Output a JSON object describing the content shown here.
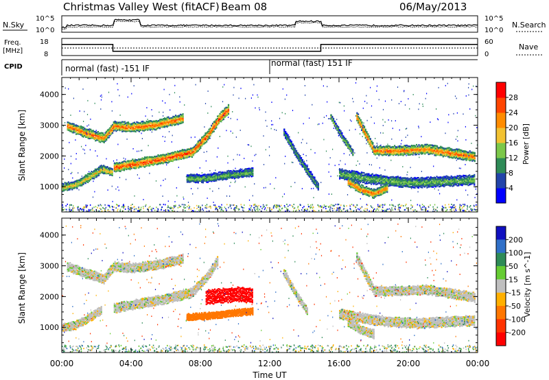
{
  "header": {
    "station": "Christmas Valley West (fitACF)",
    "beam": "Beam 08",
    "date": "06/May/2013"
  },
  "summary": {
    "nsky_label": "N.Sky",
    "nsearch_label": "N.Search",
    "noise_ticks_left": [
      "10^5",
      "10^0"
    ],
    "noise_ticks_right": [
      "10^5",
      "10^0"
    ],
    "freq_label_line1": "Freq.",
    "freq_label_line2": "[MHz]",
    "freq_ticks": [
      "18",
      "8"
    ],
    "nave_label": "Nave",
    "nave_ticks": [
      "60",
      "0"
    ],
    "cpid_label": "CPID",
    "cpid_segments": [
      {
        "label": "normal (fast) -151 IF",
        "start_hour": 0,
        "end_hour": 12
      },
      {
        "label": "normal (fast) 151 IF",
        "start_hour": 12,
        "end_hour": 24
      }
    ],
    "freq_step": {
      "high_mhz": 14.5,
      "low_mhz": 10.5,
      "low_start_hour": 2.95,
      "low_end_hour": 14.95
    }
  },
  "chart_data": [
    {
      "type": "heatmap",
      "title": "",
      "ylabel": "Slant Range [km]",
      "yticks": [
        "1000",
        "2000",
        "3000",
        "4000"
      ],
      "ylim": [
        180,
        4550
      ],
      "xlim": [
        0,
        24
      ],
      "colorbar_label": "Power [dB]",
      "colorbar_ticks": [
        "4",
        "8",
        "12",
        "16",
        "20",
        "24",
        "28"
      ],
      "colorbar_range": [
        0,
        32
      ],
      "colors": [
        "#0000ff",
        "#2244aa",
        "#2e8b57",
        "#7cc84a",
        "#f2c232",
        "#ff8c00",
        "#ff4500",
        "#ff0000"
      ],
      "bands": [
        {
          "name": "F-region upper",
          "points": [
            [
              0.3,
              3000
            ],
            [
              1.5,
              2750
            ],
            [
              2.4,
              2600
            ],
            [
              3.0,
              3000
            ],
            [
              4.0,
              2950
            ],
            [
              5.5,
              3050
            ],
            [
              7.0,
              3250
            ]
          ],
          "width_km": 260,
          "peak": 26
        },
        {
          "name": "F-region lower",
          "points": [
            [
              3.0,
              1650
            ],
            [
              4.5,
              1800
            ],
            [
              6.0,
              1950
            ],
            [
              7.5,
              2150
            ],
            [
              8.4,
              2700
            ],
            [
              9.0,
              3200
            ],
            [
              9.6,
              3550
            ]
          ],
          "width_km": 260,
          "peak": 28
        },
        {
          "name": "near-range 1",
          "points": [
            [
              0.0,
              1000
            ],
            [
              0.8,
              1100
            ],
            [
              1.6,
              1350
            ],
            [
              2.3,
              1600
            ],
            [
              2.9,
              1500
            ]
          ],
          "width_km": 220,
          "peak": 20
        },
        {
          "name": "ground-scatter mid",
          "points": [
            [
              7.2,
              1300
            ],
            [
              8.3,
              1300
            ],
            [
              9.5,
              1400
            ],
            [
              11.0,
              1500
            ]
          ],
          "width_km": 220,
          "peak": 14
        },
        {
          "name": "afternoon upper",
          "points": [
            [
              17.0,
              3300
            ],
            [
              18.0,
              2200
            ],
            [
              19.5,
              2200
            ],
            [
              21.0,
              2250
            ],
            [
              23.8,
              2000
            ]
          ],
          "width_km": 260,
          "peak": 25
        },
        {
          "name": "afternoon lower",
          "points": [
            [
              16.0,
              1450
            ],
            [
              17.5,
              1300
            ],
            [
              19.0,
              1200
            ],
            [
              20.5,
              1150
            ],
            [
              22.0,
              1200
            ],
            [
              23.8,
              1250
            ]
          ],
          "width_km": 280,
          "peak": 14
        },
        {
          "name": "afternoon near",
          "points": [
            [
              16.5,
              1200
            ],
            [
              17.2,
              950
            ],
            [
              18.0,
              800
            ],
            [
              18.8,
              1000
            ]
          ],
          "width_km": 240,
          "peak": 26
        },
        {
          "name": "dawn streak",
          "points": [
            [
              12.8,
              2800
            ],
            [
              13.5,
              2100
            ],
            [
              14.2,
              1500
            ],
            [
              14.8,
              1000
            ]
          ],
          "width_km": 200,
          "peak": 12
        },
        {
          "name": "dawn streak 2",
          "points": [
            [
              15.5,
              3300
            ],
            [
              16.2,
              2600
            ],
            [
              16.8,
              2100
            ]
          ],
          "width_km": 160,
          "peak": 16
        }
      ]
    },
    {
      "type": "heatmap",
      "title": "",
      "xlabel": "Time UT",
      "ylabel": "Slant Range [km]",
      "xticks": [
        "00:00",
        "04:00",
        "08:00",
        "12:00",
        "16:00",
        "20:00",
        "00:00"
      ],
      "xtick_hours": [
        0,
        4,
        8,
        12,
        16,
        20,
        24
      ],
      "yticks": [
        "1000",
        "2000",
        "3000",
        "4000"
      ],
      "ylim": [
        180,
        4550
      ],
      "xlim": [
        0,
        24
      ],
      "colorbar_label": "Velocity [m s^-1]",
      "colorbar_ticks": [
        "200",
        "100",
        "50",
        "15",
        "-15",
        "-50",
        "-100",
        "-200"
      ],
      "colors": [
        "#1010c0",
        "#3070c8",
        "#2e8b57",
        "#66cc33",
        "#bfbfbf",
        "#ffb000",
        "#ff7700",
        "#ff3300",
        "#ff0000"
      ],
      "bands": [
        {
          "name": "ground scatter upper",
          "points": [
            [
              0.3,
              3000
            ],
            [
              1.5,
              2750
            ],
            [
              2.4,
              2600
            ],
            [
              3.0,
              3000
            ],
            [
              4.0,
              2950
            ],
            [
              5.5,
              3050
            ],
            [
              7.0,
              3250
            ]
          ],
          "width_km": 260,
          "velocity": 0
        },
        {
          "name": "ground scatter lower",
          "points": [
            [
              3.0,
              1650
            ],
            [
              4.5,
              1800
            ],
            [
              6.0,
              1950
            ],
            [
              7.5,
              2150
            ],
            [
              8.4,
              2700
            ],
            [
              9.0,
              3200
            ]
          ],
          "width_km": 260,
          "velocity": 0
        },
        {
          "name": "near ground",
          "points": [
            [
              0.0,
              1000
            ],
            [
              0.8,
              1100
            ],
            [
              1.6,
              1350
            ],
            [
              2.3,
              1600
            ]
          ],
          "width_km": 220,
          "velocity": 0
        },
        {
          "name": "ionospheric red",
          "points": [
            [
              8.3,
              2000
            ],
            [
              9.2,
              2050
            ],
            [
              10.2,
              2100
            ],
            [
              11.0,
              2050
            ]
          ],
          "width_km": 420,
          "velocity": -230
        },
        {
          "name": "ionospheric orange",
          "points": [
            [
              7.2,
              1350
            ],
            [
              8.5,
              1400
            ],
            [
              10.0,
              1500
            ],
            [
              11.0,
              1550
            ]
          ],
          "width_km": 180,
          "velocity": -80
        },
        {
          "name": "afternoon upper",
          "points": [
            [
              17.0,
              3300
            ],
            [
              18.0,
              2200
            ],
            [
              19.5,
              2200
            ],
            [
              21.0,
              2250
            ],
            [
              23.8,
              2000
            ]
          ],
          "width_km": 260,
          "velocity": 0
        },
        {
          "name": "afternoon lower",
          "points": [
            [
              16.0,
              1450
            ],
            [
              17.5,
              1300
            ],
            [
              19.0,
              1200
            ],
            [
              20.5,
              1150
            ],
            [
              23.8,
              1250
            ]
          ],
          "width_km": 280,
          "velocity": 0
        },
        {
          "name": "afternoon near",
          "points": [
            [
              16.5,
              1200
            ],
            [
              17.2,
              950
            ],
            [
              18.0,
              800
            ]
          ],
          "width_km": 240,
          "velocity": 0
        },
        {
          "name": "dawn streak",
          "points": [
            [
              12.8,
              2800
            ],
            [
              13.5,
              2100
            ],
            [
              14.2,
              1500
            ]
          ],
          "width_km": 200,
          "velocity": 0
        }
      ]
    }
  ]
}
